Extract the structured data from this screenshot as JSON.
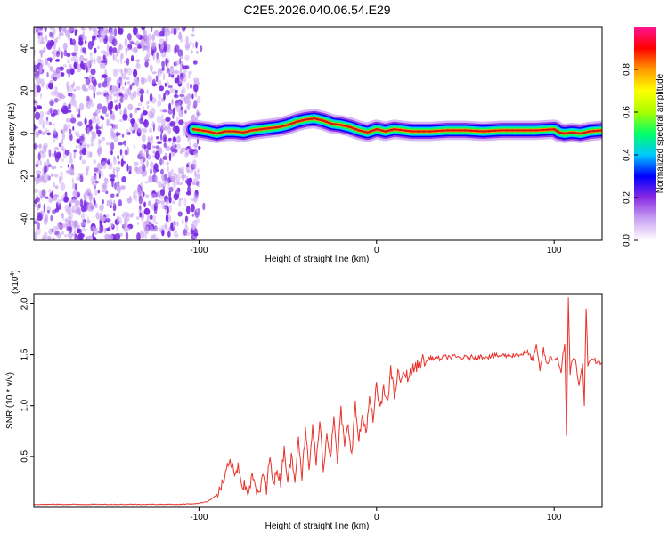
{
  "figure": {
    "title": "C2E5.2026.040.06.54.E29"
  },
  "colors": {
    "background": "#ffffff",
    "axis": "#000000",
    "snr_line": "#e8322b",
    "ridge": "#c81e14",
    "noise_purple": "#7b2be2",
    "noise_light": "#c9a3f2"
  },
  "chart_data": [
    {
      "type": "heatmap",
      "name": "spectrogram",
      "title": "",
      "xlabel": "Height of straight line (km)",
      "ylabel": "Frequency (Hz)",
      "xlim": [
        -193,
        127
      ],
      "ylim": [
        -50,
        50
      ],
      "xticks": [
        -100,
        0,
        100
      ],
      "yticks": [
        -40,
        -20,
        0,
        20,
        40
      ],
      "xtick_labels": [
        "-100",
        "0",
        "100"
      ],
      "ytick_labels": [
        "-40",
        "-20",
        "0",
        "20",
        "40"
      ],
      "noise_region_x": [
        -193,
        -100
      ],
      "ridge": {
        "x": [
          -103,
          -95,
          -90,
          -85,
          -80,
          -75,
          -70,
          -65,
          -60,
          -55,
          -50,
          -45,
          -40,
          -35,
          -30,
          -25,
          -20,
          -15,
          -10,
          -5,
          0,
          5,
          10,
          20,
          30,
          40,
          50,
          60,
          70,
          80,
          90,
          100,
          103,
          106,
          110,
          115,
          120,
          127
        ],
        "y": [
          2,
          1,
          0,
          1,
          1,
          0.5,
          1.5,
          2,
          2.5,
          3,
          4,
          5.5,
          6.5,
          7,
          6,
          4.5,
          4,
          3,
          1.5,
          0.5,
          2,
          1,
          2,
          1,
          1,
          1.5,
          1.5,
          1,
          1.5,
          1.5,
          1.5,
          2,
          0.5,
          0,
          0.5,
          0,
          1,
          1.5
        ]
      },
      "colorbar": {
        "label": "Normalized spectral amplitude",
        "range": [
          0.0,
          1.0
        ],
        "ticks": [
          0.0,
          0.2,
          0.4,
          0.6,
          0.8
        ],
        "tick_labels": [
          "0.0",
          "0.2",
          "0.4",
          "0.6",
          "0.8"
        ],
        "colormap": [
          "#ffffff",
          "#c9a3f2",
          "#8a2be2",
          "#0000ff",
          "#00c8ff",
          "#00ff66",
          "#aaff00",
          "#ffff00",
          "#ff9900",
          "#ff0000",
          "#ff1493"
        ]
      }
    },
    {
      "type": "line",
      "name": "snr",
      "title": "",
      "xlabel": "Height of straight line (km)",
      "ylabel": "SNR (10 * v/v)",
      "y_multiplier": "(x10",
      "y_multiplier_exp": "4",
      "y_multiplier_close": ")",
      "xlim": [
        -193,
        127
      ],
      "ylim": [
        0,
        2.1
      ],
      "xticks": [
        -100,
        0,
        100
      ],
      "yticks": [
        0.5,
        1.0,
        1.5,
        2.0
      ],
      "xtick_labels": [
        "-100",
        "0",
        "100"
      ],
      "ytick_labels": [
        "0.5",
        "1.0",
        "1.5",
        "2.0"
      ],
      "series": [
        {
          "name": "SNR",
          "x": [
            -193,
            -180,
            -160,
            -140,
            -120,
            -110,
            -100,
            -95,
            -90,
            -86,
            -84,
            -82,
            -80,
            -78,
            -76,
            -74,
            -72,
            -70,
            -68,
            -66,
            -64,
            -62,
            -60,
            -58,
            -56,
            -54,
            -52,
            -50,
            -48,
            -46,
            -44,
            -42,
            -40,
            -38,
            -36,
            -34,
            -32,
            -30,
            -28,
            -26,
            -24,
            -22,
            -20,
            -18,
            -16,
            -14,
            -12,
            -10,
            -8,
            -6,
            -4,
            -2,
            0,
            2,
            4,
            6,
            8,
            10,
            12,
            14,
            16,
            18,
            20,
            22,
            24,
            26,
            28,
            30,
            35,
            40,
            50,
            60,
            70,
            80,
            85,
            88,
            90,
            92,
            94,
            96,
            98,
            100,
            102,
            104,
            105,
            106,
            107,
            108,
            109,
            110,
            112,
            114,
            116,
            117,
            118,
            119,
            120,
            122,
            125,
            127
          ],
          "y": [
            0.03,
            0.03,
            0.03,
            0.03,
            0.03,
            0.03,
            0.04,
            0.06,
            0.12,
            0.25,
            0.38,
            0.45,
            0.3,
            0.42,
            0.25,
            0.2,
            0.15,
            0.3,
            0.18,
            0.1,
            0.35,
            0.15,
            0.55,
            0.2,
            0.38,
            0.25,
            0.6,
            0.25,
            0.5,
            0.3,
            0.7,
            0.3,
            0.75,
            0.35,
            0.8,
            0.4,
            0.9,
            0.35,
            0.75,
            0.5,
            0.85,
            0.45,
            0.95,
            0.6,
            0.8,
            0.55,
            1.0,
            0.65,
            0.9,
            0.75,
            1.05,
            0.85,
            1.2,
            0.95,
            1.15,
            1.05,
            1.35,
            1.1,
            1.3,
            1.25,
            1.32,
            1.28,
            1.35,
            1.38,
            1.4,
            1.45,
            1.42,
            1.47,
            1.46,
            1.48,
            1.47,
            1.48,
            1.49,
            1.5,
            1.52,
            1.45,
            1.58,
            1.35,
            1.55,
            1.4,
            1.48,
            1.45,
            1.47,
            1.3,
            1.5,
            1.6,
            0.72,
            2.08,
            1.3,
            1.45,
            1.45,
            1.2,
            1.4,
            1.02,
            1.97,
            1.4,
            1.42,
            1.45,
            1.42,
            1.42
          ]
        }
      ]
    }
  ]
}
